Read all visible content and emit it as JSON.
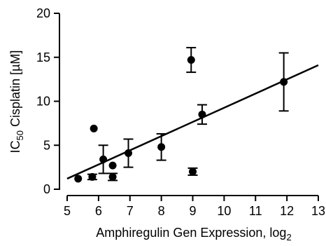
{
  "chart_data": {
    "type": "scatter",
    "xlabel": "Amphiregulin Gen Expression, log",
    "xlabel_sub": "2",
    "ylabel": "IC",
    "ylabel_sub": "50",
    "ylabel_rest": " Cisplatin [µM]",
    "xlim": [
      5,
      13
    ],
    "ylim": [
      0,
      20
    ],
    "xticks": [
      5,
      6,
      7,
      8,
      9,
      10,
      11,
      12,
      13
    ],
    "yticks": [
      0,
      5,
      10,
      15,
      20
    ],
    "grid": false,
    "points": [
      {
        "x": 5.35,
        "y": 1.2,
        "err": 0
      },
      {
        "x": 5.8,
        "y": 1.4,
        "err": 0.3
      },
      {
        "x": 5.85,
        "y": 6.9,
        "err": 0
      },
      {
        "x": 6.15,
        "y": 3.4,
        "err": 1.6
      },
      {
        "x": 6.45,
        "y": 2.7,
        "err": 0
      },
      {
        "x": 6.45,
        "y": 1.4,
        "err": 0.4
      },
      {
        "x": 6.95,
        "y": 4.1,
        "err": 1.6
      },
      {
        "x": 8.0,
        "y": 4.8,
        "err": 1.5
      },
      {
        "x": 8.95,
        "y": 14.7,
        "err": 1.4
      },
      {
        "x": 9.0,
        "y": 2.0,
        "err": 0.4
      },
      {
        "x": 9.3,
        "y": 8.5,
        "err": 1.1
      },
      {
        "x": 11.9,
        "y": 12.2,
        "err": 3.3
      }
    ],
    "fit_line": {
      "x": [
        5.0,
        13.0
      ],
      "y": [
        1.2,
        14.1
      ]
    }
  }
}
